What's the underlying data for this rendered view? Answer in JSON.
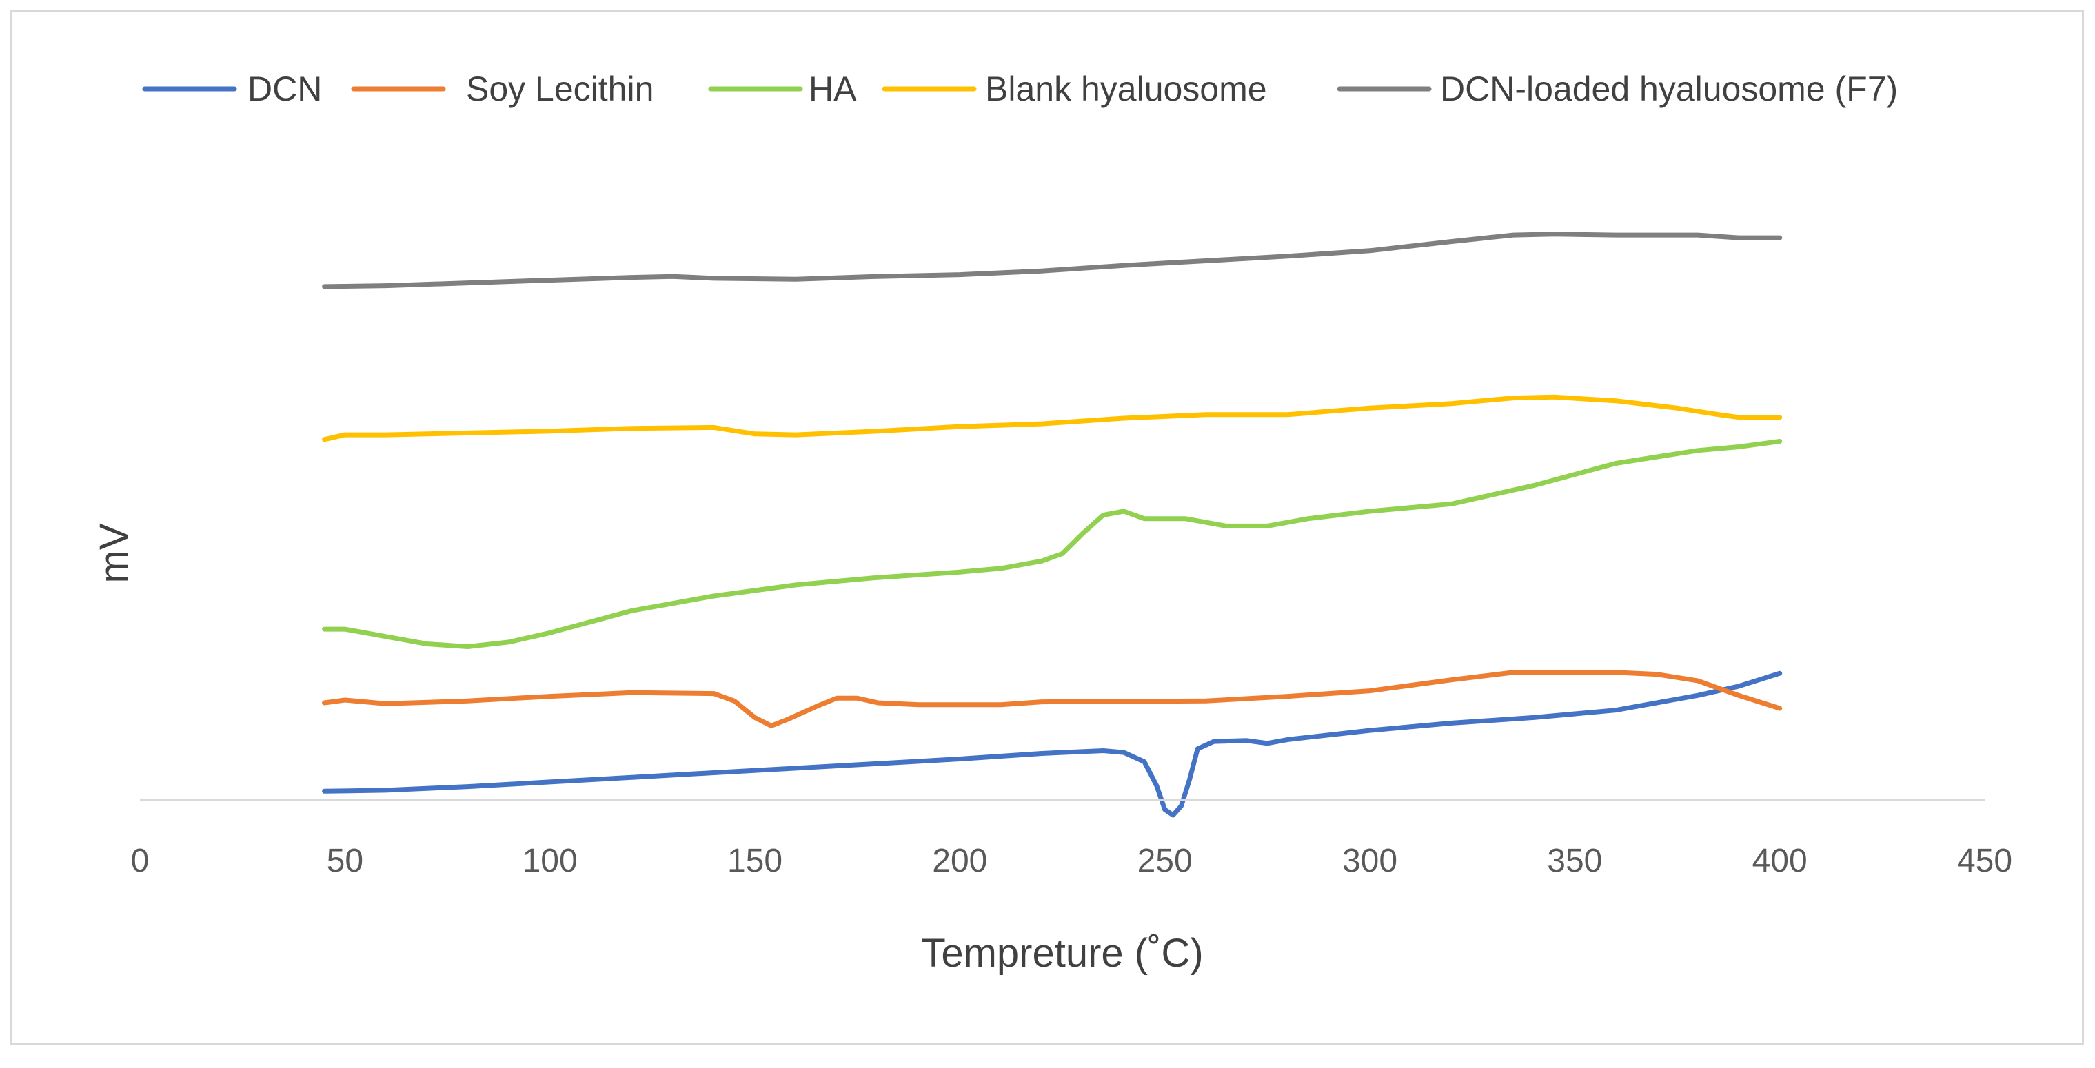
{
  "chart_data": {
    "type": "line",
    "title": "",
    "xlabel": "Tempreture (˚C)",
    "ylabel": "mV",
    "xlim": [
      0,
      450
    ],
    "x_ticks": [
      0,
      50,
      100,
      150,
      200,
      250,
      300,
      350,
      400,
      450
    ],
    "ylim": [
      -1,
      32
    ],
    "y_axis_visible": false,
    "grid": false,
    "legend_position": "top",
    "series": [
      {
        "name": "DCN",
        "color": "#4472C4",
        "points": [
          [
            45,
            0.0
          ],
          [
            60,
            0.05
          ],
          [
            80,
            0.25
          ],
          [
            100,
            0.5
          ],
          [
            120,
            0.75
          ],
          [
            140,
            1.0
          ],
          [
            160,
            1.25
          ],
          [
            180,
            1.5
          ],
          [
            200,
            1.75
          ],
          [
            220,
            2.05
          ],
          [
            235,
            2.2
          ],
          [
            240,
            2.1
          ],
          [
            245,
            1.6
          ],
          [
            248,
            0.3
          ],
          [
            250,
            -1.0
          ],
          [
            252,
            -1.3
          ],
          [
            254,
            -0.8
          ],
          [
            256,
            0.6
          ],
          [
            258,
            2.3
          ],
          [
            262,
            2.7
          ],
          [
            270,
            2.75
          ],
          [
            275,
            2.6
          ],
          [
            280,
            2.8
          ],
          [
            300,
            3.3
          ],
          [
            320,
            3.7
          ],
          [
            340,
            4.0
          ],
          [
            360,
            4.4
          ],
          [
            380,
            5.2
          ],
          [
            390,
            5.7
          ],
          [
            400,
            6.4
          ]
        ]
      },
      {
        "name": "Soy Lecithin",
        "color": "#ED7D31",
        "points": [
          [
            45,
            4.8
          ],
          [
            50,
            4.95
          ],
          [
            60,
            4.75
          ],
          [
            80,
            4.9
          ],
          [
            100,
            5.15
          ],
          [
            120,
            5.35
          ],
          [
            140,
            5.3
          ],
          [
            145,
            4.9
          ],
          [
            150,
            4.0
          ],
          [
            154,
            3.55
          ],
          [
            158,
            3.9
          ],
          [
            165,
            4.6
          ],
          [
            170,
            5.05
          ],
          [
            175,
            5.05
          ],
          [
            180,
            4.8
          ],
          [
            190,
            4.7
          ],
          [
            210,
            4.7
          ],
          [
            220,
            4.85
          ],
          [
            260,
            4.9
          ],
          [
            280,
            5.15
          ],
          [
            300,
            5.45
          ],
          [
            320,
            6.05
          ],
          [
            335,
            6.45
          ],
          [
            360,
            6.45
          ],
          [
            370,
            6.35
          ],
          [
            380,
            6.0
          ],
          [
            390,
            5.2
          ],
          [
            400,
            4.5
          ]
        ]
      },
      {
        "name": "HA",
        "color": "#92D050",
        "points": [
          [
            45,
            8.8
          ],
          [
            50,
            8.8
          ],
          [
            60,
            8.4
          ],
          [
            70,
            8.0
          ],
          [
            80,
            7.85
          ],
          [
            90,
            8.1
          ],
          [
            100,
            8.6
          ],
          [
            120,
            9.8
          ],
          [
            140,
            10.6
          ],
          [
            160,
            11.2
          ],
          [
            180,
            11.6
          ],
          [
            200,
            11.9
          ],
          [
            210,
            12.1
          ],
          [
            220,
            12.5
          ],
          [
            225,
            12.9
          ],
          [
            230,
            14.0
          ],
          [
            235,
            15.0
          ],
          [
            240,
            15.2
          ],
          [
            245,
            14.8
          ],
          [
            255,
            14.8
          ],
          [
            265,
            14.4
          ],
          [
            275,
            14.4
          ],
          [
            285,
            14.8
          ],
          [
            300,
            15.2
          ],
          [
            320,
            15.6
          ],
          [
            340,
            16.6
          ],
          [
            360,
            17.8
          ],
          [
            380,
            18.5
          ],
          [
            390,
            18.7
          ],
          [
            400,
            19.0
          ]
        ]
      },
      {
        "name": "Blank hyaluosome",
        "color": "#FFC000",
        "points": [
          [
            45,
            19.1
          ],
          [
            50,
            19.35
          ],
          [
            60,
            19.35
          ],
          [
            80,
            19.45
          ],
          [
            100,
            19.55
          ],
          [
            120,
            19.7
          ],
          [
            140,
            19.75
          ],
          [
            150,
            19.4
          ],
          [
            160,
            19.35
          ],
          [
            180,
            19.55
          ],
          [
            200,
            19.8
          ],
          [
            220,
            19.95
          ],
          [
            240,
            20.25
          ],
          [
            260,
            20.45
          ],
          [
            280,
            20.45
          ],
          [
            300,
            20.8
          ],
          [
            320,
            21.05
          ],
          [
            335,
            21.35
          ],
          [
            345,
            21.4
          ],
          [
            360,
            21.2
          ],
          [
            375,
            20.8
          ],
          [
            385,
            20.45
          ],
          [
            390,
            20.3
          ],
          [
            400,
            20.3
          ]
        ]
      },
      {
        "name": "DCN-loaded hyaluosome (F7)",
        "color": "#7F7F7F",
        "points": [
          [
            45,
            27.4
          ],
          [
            60,
            27.45
          ],
          [
            80,
            27.6
          ],
          [
            100,
            27.75
          ],
          [
            120,
            27.9
          ],
          [
            130,
            27.95
          ],
          [
            140,
            27.85
          ],
          [
            160,
            27.8
          ],
          [
            180,
            27.95
          ],
          [
            200,
            28.05
          ],
          [
            220,
            28.25
          ],
          [
            240,
            28.55
          ],
          [
            260,
            28.8
          ],
          [
            280,
            29.05
          ],
          [
            300,
            29.35
          ],
          [
            320,
            29.85
          ],
          [
            335,
            30.2
          ],
          [
            345,
            30.25
          ],
          [
            360,
            30.2
          ],
          [
            380,
            30.2
          ],
          [
            390,
            30.05
          ],
          [
            400,
            30.05
          ]
        ]
      }
    ]
  }
}
